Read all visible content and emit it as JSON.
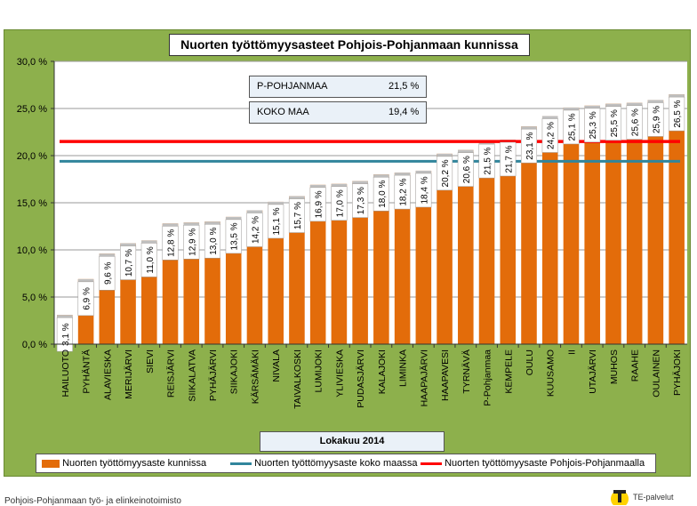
{
  "chart_data": {
    "type": "bar",
    "title": "Nuorten työttömyysasteet Pohjois-Pohjanmaan kunnissa",
    "categories": [
      "HAILUOTO",
      "PYHÄNTÄ",
      "ALAVIESKA",
      "MERIJÄRVI",
      "SIEVI",
      "REISJÄRVI",
      "SIIKALATVA",
      "PYHÄJÄRVI",
      "SIIKAJOKI",
      "KÄRSÄMÄKI",
      "NIVALA",
      "TAIVALKOSKI",
      "LUMIJOKI",
      "YLIVIESKA",
      "PUDASJÄRVI",
      "KALAJOKI",
      "LIMINKA",
      "HAAPAJÄRVI",
      "HAAPAVESI",
      "TYRNÄVÄ",
      "P-Pohjanmaa",
      "KEMPELE",
      "OULU",
      "KUUSAMO",
      "II",
      "UTAJÄRVI",
      "MUHOS",
      "RAAHE",
      "OULAINEN",
      "PYHÄJOKI"
    ],
    "values": [
      3.1,
      6.9,
      9.6,
      10.7,
      11.0,
      12.8,
      12.9,
      13.0,
      13.5,
      14.2,
      15.1,
      15.7,
      16.9,
      17.0,
      17.3,
      18.0,
      18.2,
      18.4,
      20.2,
      20.6,
      21.5,
      21.7,
      23.1,
      24.2,
      25.1,
      25.3,
      25.5,
      25.6,
      25.9,
      26.5
    ],
    "value_labels": [
      "3,1 %",
      "6,9 %",
      "9,6 %",
      "10,7 %",
      "11,0 %",
      "12,8 %",
      "12,9 %",
      "13,0 %",
      "13,5 %",
      "14,2 %",
      "15,1 %",
      "15,7 %",
      "16,9 %",
      "17,0 %",
      "17,3 %",
      "18,0 %",
      "18,2 %",
      "18,4 %",
      "20,2 %",
      "20,6 %",
      "21,5 %",
      "21,7 %",
      "23,1 %",
      "24,2 %",
      "25,1 %",
      "25,3 %",
      "25,5 %",
      "25,6 %",
      "25,9 %",
      "26,5 %"
    ],
    "ylim": [
      0,
      30
    ],
    "yticks": [
      0,
      5,
      10,
      15,
      20,
      25,
      30
    ],
    "ytick_labels": [
      "0,0 %",
      "5,0 %",
      "10,0 %",
      "15,0 %",
      "20,0 %",
      "25,0 %",
      "30,0 %"
    ],
    "reference_lines": [
      {
        "name": "Nuorten työttömyysaste koko maassa",
        "value": 19.4,
        "color": "#31859c"
      },
      {
        "name": "Nuorten työttömyysaste Pohjois-Pohjanmaalla",
        "value": 21.5,
        "color": "#ff0000"
      }
    ],
    "series": [
      {
        "name": "Nuorten työttömyysaste kunnissa",
        "color": "#e36c0a"
      }
    ],
    "info_boxes": [
      {
        "label": "P-POHJANMAA",
        "value": "21,5 %"
      },
      {
        "label": "KOKO MAA",
        "value": "19,4 %"
      }
    ],
    "period": "Lokakuu 2014",
    "grid": true,
    "legend_position": "bottom"
  },
  "colors": {
    "background": "#8db04c",
    "bar": "#e36c0a",
    "bar_top": "#d9d9d9",
    "label_bg": "#ffffff"
  },
  "footer": {
    "left_text": "Pohjois-Pohjanmaan työ- ja elinkeinotoimisto",
    "logo_text": "TE-palvelut",
    "logo_icon": "te-palvelut-logo-icon"
  }
}
